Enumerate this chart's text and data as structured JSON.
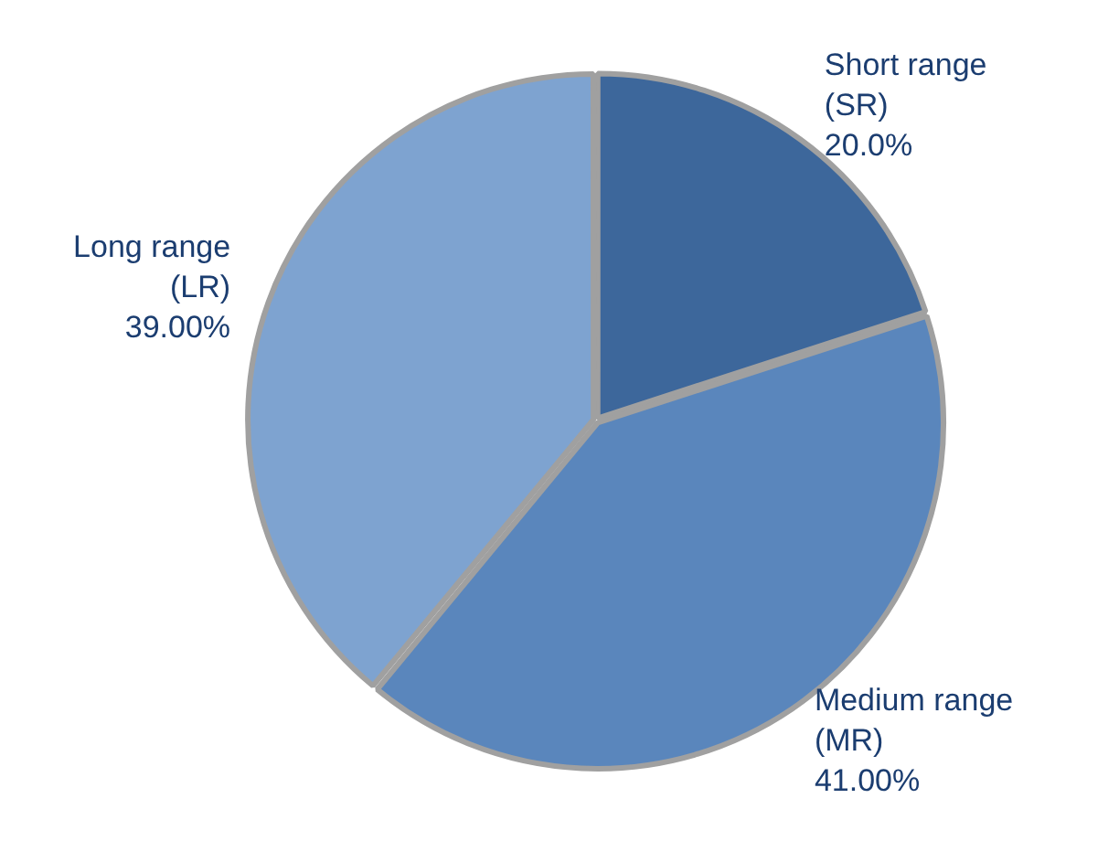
{
  "chart_data": {
    "type": "pie",
    "categories": [
      "Short range (SR)",
      "Medium range (MR)",
      "Long range (LR)"
    ],
    "values": [
      20,
      41,
      39
    ],
    "value_labels": [
      "20.0%",
      "41.00%",
      "39.00%"
    ],
    "colors": [
      "#3d679b",
      "#5a86bc",
      "#7ea3d0"
    ],
    "legend": false
  }
}
